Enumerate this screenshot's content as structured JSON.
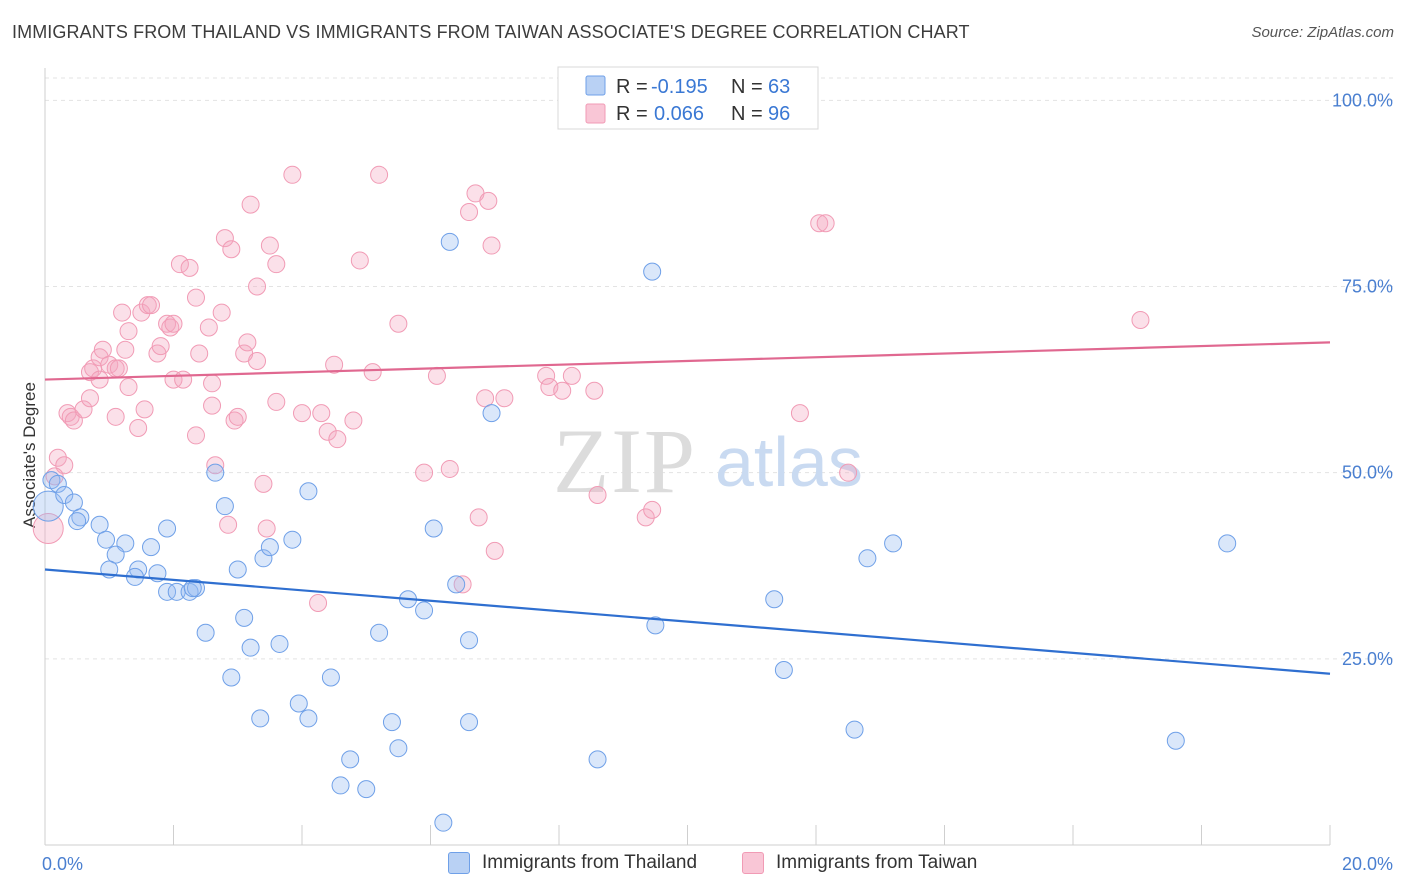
{
  "title": "IMMIGRANTS FROM THAILAND VS IMMIGRANTS FROM TAIWAN ASSOCIATE'S DEGREE CORRELATION CHART",
  "source": "Source: ZipAtlas.com",
  "colors": {
    "thailand": "#6fa0e8",
    "thailand_line": "#2f6fd0",
    "taiwan": "#f19bb5",
    "taiwan_line": "#e06890",
    "tick": "#4a7fd0"
  },
  "legend": {
    "thailand": {
      "r_label": "R =",
      "r_value": "-0.195",
      "n_label": "N =",
      "n_value": "63"
    },
    "taiwan": {
      "r_label": "R =",
      "r_value": "0.066",
      "n_label": "N =",
      "n_value": "96"
    }
  },
  "bottom_legend": {
    "thailand": "Immigrants from Thailand",
    "taiwan": "Immigrants from Taiwan"
  },
  "watermark": {
    "zip": "ZIP",
    "atlas": "atlas"
  },
  "chart_data": {
    "type": "scatter",
    "title": "IMMIGRANTS FROM THAILAND VS IMMIGRANTS FROM TAIWAN ASSOCIATE'S DEGREE CORRELATION CHART",
    "xlabel": "",
    "ylabel": "Associate's Degree",
    "xlim": [
      0,
      20
    ],
    "ylim": [
      0,
      103
    ],
    "x_tick_labels": [
      "0.0%",
      "20.0%"
    ],
    "y_tick_labels": [
      "100.0%",
      "75.0%",
      "50.0%",
      "25.0%"
    ],
    "y_ticks": [
      100,
      75,
      50,
      25
    ],
    "grid": true,
    "legend_position": "top-center",
    "series": [
      {
        "name": "Immigrants from Thailand",
        "color": "#6fa0e8",
        "trend": {
          "x": [
            0,
            20
          ],
          "y": [
            37.0,
            23.0
          ]
        },
        "points": [
          [
            0.05,
            45.5
          ],
          [
            0.1,
            49
          ],
          [
            0.2,
            48.5
          ],
          [
            0.3,
            47
          ],
          [
            0.45,
            46
          ],
          [
            0.55,
            44
          ],
          [
            0.5,
            43.5
          ],
          [
            0.85,
            43
          ],
          [
            0.95,
            41
          ],
          [
            1.25,
            40.5
          ],
          [
            1.65,
            40
          ],
          [
            1.1,
            39
          ],
          [
            1.0,
            37
          ],
          [
            1.45,
            37
          ],
          [
            1.75,
            36.5
          ],
          [
            1.4,
            36
          ],
          [
            1.9,
            34
          ],
          [
            2.05,
            34
          ],
          [
            2.25,
            34
          ],
          [
            2.35,
            34.5
          ],
          [
            2.3,
            34.5
          ],
          [
            1.9,
            42.5
          ],
          [
            2.8,
            45.5
          ],
          [
            2.65,
            50
          ],
          [
            3.0,
            37
          ],
          [
            3.4,
            38.5
          ],
          [
            3.5,
            40
          ],
          [
            3.85,
            41
          ],
          [
            4.1,
            47.5
          ],
          [
            3.1,
            30.5
          ],
          [
            2.5,
            28.5
          ],
          [
            3.2,
            26.5
          ],
          [
            3.65,
            27
          ],
          [
            2.9,
            22.5
          ],
          [
            4.45,
            22.5
          ],
          [
            5.2,
            28.5
          ],
          [
            5.65,
            33
          ],
          [
            5.9,
            31.5
          ],
          [
            6.05,
            42.5
          ],
          [
            6.4,
            35
          ],
          [
            6.6,
            27.5
          ],
          [
            6.95,
            58
          ],
          [
            6.3,
            81
          ],
          [
            9.45,
            77
          ],
          [
            9.5,
            29.5
          ],
          [
            11.35,
            33
          ],
          [
            12.8,
            38.5
          ],
          [
            13.2,
            40.5
          ],
          [
            18.4,
            40.5
          ],
          [
            3.35,
            17
          ],
          [
            3.95,
            19
          ],
          [
            4.1,
            17
          ],
          [
            5.4,
            16.5
          ],
          [
            5.5,
            13
          ],
          [
            4.75,
            11.5
          ],
          [
            4.6,
            8
          ],
          [
            5.0,
            7.5
          ],
          [
            6.6,
            16.5
          ],
          [
            8.6,
            11.5
          ],
          [
            11.5,
            23.5
          ],
          [
            12.6,
            15.5
          ],
          [
            17.6,
            14
          ],
          [
            6.2,
            3
          ]
        ]
      },
      {
        "name": "Immigrants from Taiwan",
        "color": "#f19bb5",
        "trend": {
          "x": [
            0,
            20
          ],
          "y": [
            62.5,
            67.5
          ]
        },
        "points": [
          [
            0.05,
            42.5
          ],
          [
            0.2,
            52
          ],
          [
            0.3,
            51
          ],
          [
            0.15,
            49.5
          ],
          [
            0.35,
            58
          ],
          [
            0.4,
            57.5
          ],
          [
            0.45,
            57
          ],
          [
            0.6,
            58.5
          ],
          [
            0.7,
            63.5
          ],
          [
            0.75,
            64
          ],
          [
            0.85,
            62.5
          ],
          [
            0.7,
            60
          ],
          [
            0.85,
            65.5
          ],
          [
            0.9,
            66.5
          ],
          [
            1.0,
            64.5
          ],
          [
            1.1,
            64
          ],
          [
            1.15,
            64
          ],
          [
            1.25,
            66.5
          ],
          [
            1.3,
            61.5
          ],
          [
            1.2,
            71.5
          ],
          [
            1.3,
            69
          ],
          [
            1.5,
            71.5
          ],
          [
            1.6,
            72.5
          ],
          [
            1.65,
            72.5
          ],
          [
            1.55,
            58.5
          ],
          [
            1.45,
            56
          ],
          [
            1.1,
            57.5
          ],
          [
            1.75,
            66
          ],
          [
            1.8,
            67
          ],
          [
            1.9,
            70
          ],
          [
            1.95,
            69.5
          ],
          [
            2.0,
            70
          ],
          [
            2.0,
            62.5
          ],
          [
            2.15,
            62.5
          ],
          [
            2.35,
            55
          ],
          [
            2.4,
            66
          ],
          [
            2.55,
            69.5
          ],
          [
            2.6,
            59
          ],
          [
            2.6,
            62
          ],
          [
            2.75,
            71.5
          ],
          [
            2.95,
            57
          ],
          [
            3.0,
            57.5
          ],
          [
            3.1,
            66
          ],
          [
            3.15,
            67.5
          ],
          [
            3.3,
            65
          ],
          [
            2.1,
            78
          ],
          [
            2.25,
            77.5
          ],
          [
            2.35,
            73.5
          ],
          [
            2.8,
            81.5
          ],
          [
            2.9,
            80
          ],
          [
            3.2,
            86
          ],
          [
            3.3,
            75
          ],
          [
            3.5,
            80.5
          ],
          [
            3.6,
            78
          ],
          [
            3.85,
            90
          ],
          [
            3.6,
            59.5
          ],
          [
            3.4,
            48.5
          ],
          [
            3.45,
            42.5
          ],
          [
            2.65,
            51
          ],
          [
            2.85,
            43
          ],
          [
            4.0,
            58
          ],
          [
            4.3,
            58
          ],
          [
            4.4,
            55.5
          ],
          [
            4.55,
            54.5
          ],
          [
            4.5,
            64.5
          ],
          [
            4.8,
            57
          ],
          [
            4.9,
            78.5
          ],
          [
            5.1,
            63.5
          ],
          [
            5.2,
            90
          ],
          [
            5.5,
            70
          ],
          [
            5.9,
            50
          ],
          [
            6.1,
            63
          ],
          [
            6.3,
            50.5
          ],
          [
            6.6,
            85
          ],
          [
            6.7,
            87.5
          ],
          [
            6.9,
            86.5
          ],
          [
            6.95,
            80.5
          ],
          [
            6.85,
            60
          ],
          [
            7.15,
            60
          ],
          [
            6.75,
            44
          ],
          [
            7.0,
            39.5
          ],
          [
            6.5,
            35
          ],
          [
            4.25,
            32.5
          ],
          [
            7.8,
            63
          ],
          [
            7.85,
            61.5
          ],
          [
            8.05,
            61
          ],
          [
            8.2,
            63
          ],
          [
            8.55,
            61
          ],
          [
            8.6,
            47
          ],
          [
            9.35,
            44
          ],
          [
            9.45,
            45
          ],
          [
            11.75,
            58
          ],
          [
            12.05,
            83.5
          ],
          [
            12.15,
            83.5
          ],
          [
            17.05,
            70.5
          ],
          [
            12.5,
            50
          ]
        ]
      }
    ]
  }
}
